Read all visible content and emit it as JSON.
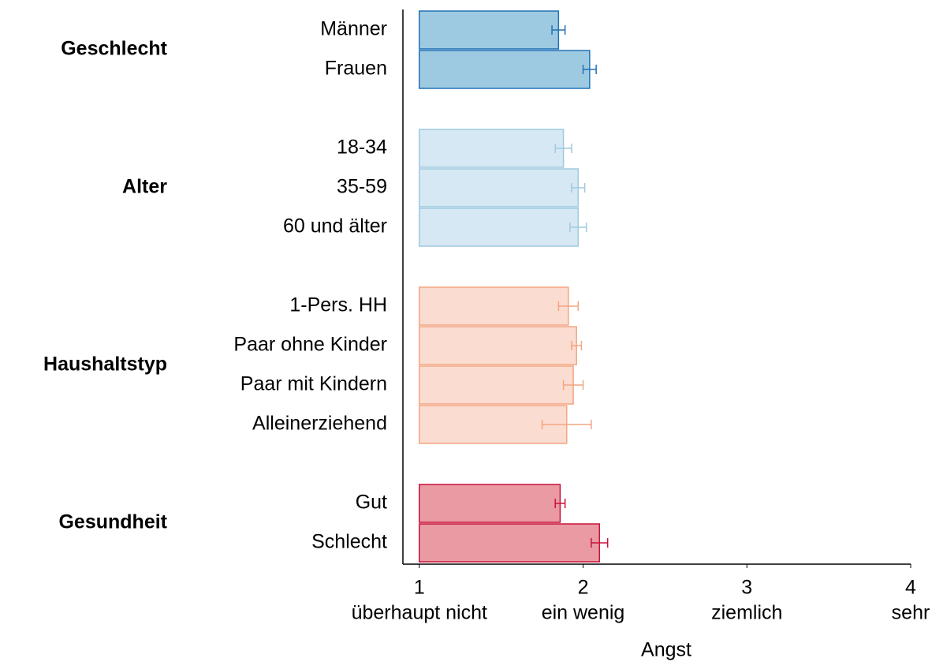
{
  "chart_data": {
    "type": "bar",
    "orientation": "horizontal",
    "error_bars": true,
    "x_label": "Angst",
    "xlim": [
      0.9,
      4
    ],
    "xticks": [
      1,
      2,
      3,
      4
    ],
    "xtick_sublabels": [
      "überhaupt nicht",
      "ein wenig",
      "ziemlich",
      "sehr"
    ],
    "bar_base": 1,
    "groups": [
      {
        "name": "Geschlecht",
        "color": "#9ecae1",
        "edge_color": "#2171b5",
        "categories": [
          "Männer",
          "Frauen"
        ],
        "values": [
          1.85,
          2.04
        ],
        "errors": [
          0.04,
          0.04
        ]
      },
      {
        "name": "Alter",
        "color": "#d6e8f3",
        "edge_color": "#9ecae1",
        "categories": [
          "18-34",
          "35-59",
          "60 und älter"
        ],
        "values": [
          1.88,
          1.97,
          1.97
        ],
        "errors": [
          0.05,
          0.04,
          0.05
        ]
      },
      {
        "name": "Haushaltstyp",
        "color": "#fbdcd0",
        "edge_color": "#f4a582",
        "categories": [
          "1-Pers. HH",
          "Paar ohne Kinder",
          "Paar mit Kindern",
          "Alleinerziehend"
        ],
        "values": [
          1.91,
          1.96,
          1.94,
          1.9
        ],
        "errors": [
          0.06,
          0.03,
          0.06,
          0.15
        ]
      },
      {
        "name": "Gesundheit",
        "color": "#e99aa3",
        "edge_color": "#c9123a",
        "categories": [
          "Gut",
          "Schlecht"
        ],
        "values": [
          1.86,
          2.1
        ],
        "errors": [
          0.03,
          0.05
        ]
      }
    ]
  }
}
